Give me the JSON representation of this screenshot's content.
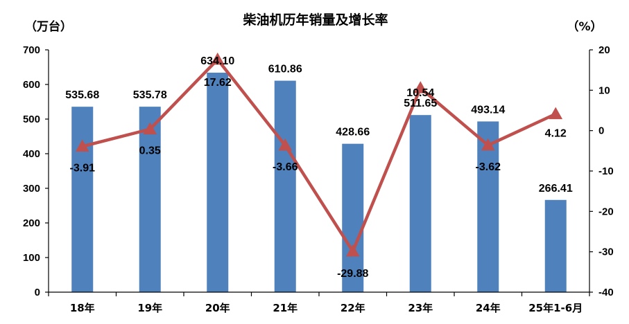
{
  "chart_data": {
    "type": "bar+line",
    "title": "柴油机历年销量及增长率",
    "y_left_unit": "（万台）",
    "y_right_unit": "（%）",
    "categories": [
      "18年",
      "19年",
      "20年",
      "21年",
      "22年",
      "23年",
      "24年",
      "25年1-6月"
    ],
    "bar_series": {
      "values": [
        535.68,
        535.78,
        634.1,
        610.86,
        428.66,
        511.65,
        493.14,
        266.41
      ],
      "labels": [
        "535.68",
        "535.78",
        "634.10",
        "610.86",
        "428.66",
        "511.65",
        "493.14",
        "266.41"
      ],
      "color": "#4f81bd"
    },
    "line_series": {
      "values": [
        -3.91,
        0.35,
        17.62,
        -3.66,
        -29.88,
        10.54,
        -3.62,
        4.12
      ],
      "labels": [
        "-3.91",
        "0.35",
        "17.62",
        "-3.66",
        "-29.88",
        "10.54",
        "-3.62",
        "4.12"
      ],
      "color": "#c0504d"
    },
    "y_left": {
      "min": 0,
      "max": 700,
      "ticks": [
        "0",
        "100",
        "200",
        "300",
        "400",
        "500",
        "600",
        "700"
      ]
    },
    "y_right": {
      "min": -40,
      "max": 20,
      "ticks": [
        "-40",
        "-30",
        "-20",
        "-10",
        "0",
        "10",
        "20"
      ]
    },
    "grid": false,
    "legend": "none"
  }
}
